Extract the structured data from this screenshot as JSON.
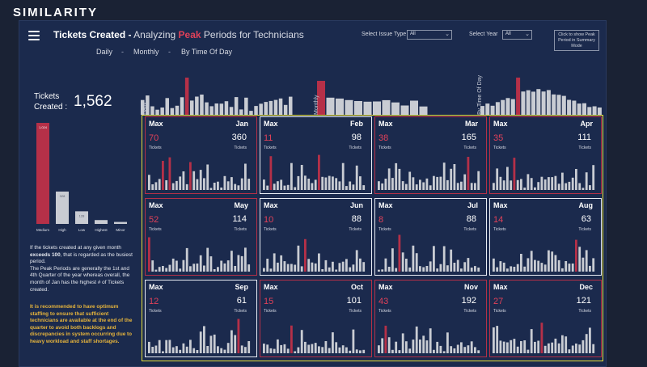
{
  "brand": "SIMILARITY",
  "header": {
    "title_main": "Tickets Created",
    "title_dash": "-",
    "title_sub_1": "Analyzing",
    "title_peak": "Peak",
    "title_sub_2": "Periods for Technicians",
    "views": [
      "Daily",
      "Monthly",
      "By Time Of Day"
    ],
    "view_separator": "-"
  },
  "filters": {
    "issue_type_label": "Select Issue Type",
    "issue_type_value": "All",
    "year_label": "Select Year",
    "year_value": "All"
  },
  "summary_button": "Click to show Peak Period in Summary Mode",
  "histogram_labels": [
    "Daily",
    "Monthly",
    "By Time Of Day"
  ],
  "kpi": {
    "label": "Tickets Created :",
    "value": "1,562"
  },
  "priority_chart": {
    "categories": [
      "Medium",
      "High",
      "Low",
      "Highest",
      "Minor"
    ],
    "values": [
      1024,
      328,
      128,
      39,
      20
    ],
    "data_labels": [
      "1,024",
      "328",
      "128",
      "",
      ""
    ],
    "colors": [
      "#b53048",
      "#c9ccd3",
      "#c9ccd3",
      "#c9ccd3",
      "#c9ccd3"
    ]
  },
  "notes": {
    "p1_a": "If the tickets created at any given month",
    "p1_b": "exceeds 100",
    "p1_c": ", that is regarded as the busiest period.",
    "p2": "The Peak Periods are generally the 1st and 4th Quarter of the year whereas overall, the month of Jan has the highest # of Tickets created.",
    "recommendation": "It is recommended to have optimum staffing to ensure that sufficient technicians are available at the end of the quarter to avoid both backlogs and discrepancies in system occurring due to heavy workload and staff shortages."
  },
  "month_card_labels": {
    "max": "Max",
    "unit": "Tickets"
  },
  "months": [
    {
      "name": "Jan",
      "max": "70",
      "total": "360",
      "selected": false
    },
    {
      "name": "Feb",
      "max": "11",
      "total": "98",
      "selected": true
    },
    {
      "name": "Mar",
      "max": "38",
      "total": "165",
      "selected": false
    },
    {
      "name": "Apr",
      "max": "35",
      "total": "111",
      "selected": false
    },
    {
      "name": "May",
      "max": "52",
      "total": "114",
      "selected": false
    },
    {
      "name": "Jun",
      "max": "10",
      "total": "88",
      "selected": true
    },
    {
      "name": "Jul",
      "max": "8",
      "total": "88",
      "selected": true
    },
    {
      "name": "Aug",
      "max": "14",
      "total": "63",
      "selected": true
    },
    {
      "name": "Sep",
      "max": "12",
      "total": "61",
      "selected": true
    },
    {
      "name": "Oct",
      "max": "15",
      "total": "101",
      "selected": false
    },
    {
      "name": "Nov",
      "max": "43",
      "total": "192",
      "selected": false
    },
    {
      "name": "Dec",
      "max": "27",
      "total": "121",
      "selected": false
    }
  ],
  "colors": {
    "accent": "#e04159",
    "bar_peak": "#b53048",
    "bar_normal": "#c9ccd3",
    "highlight_box": "#e6df3b"
  }
}
